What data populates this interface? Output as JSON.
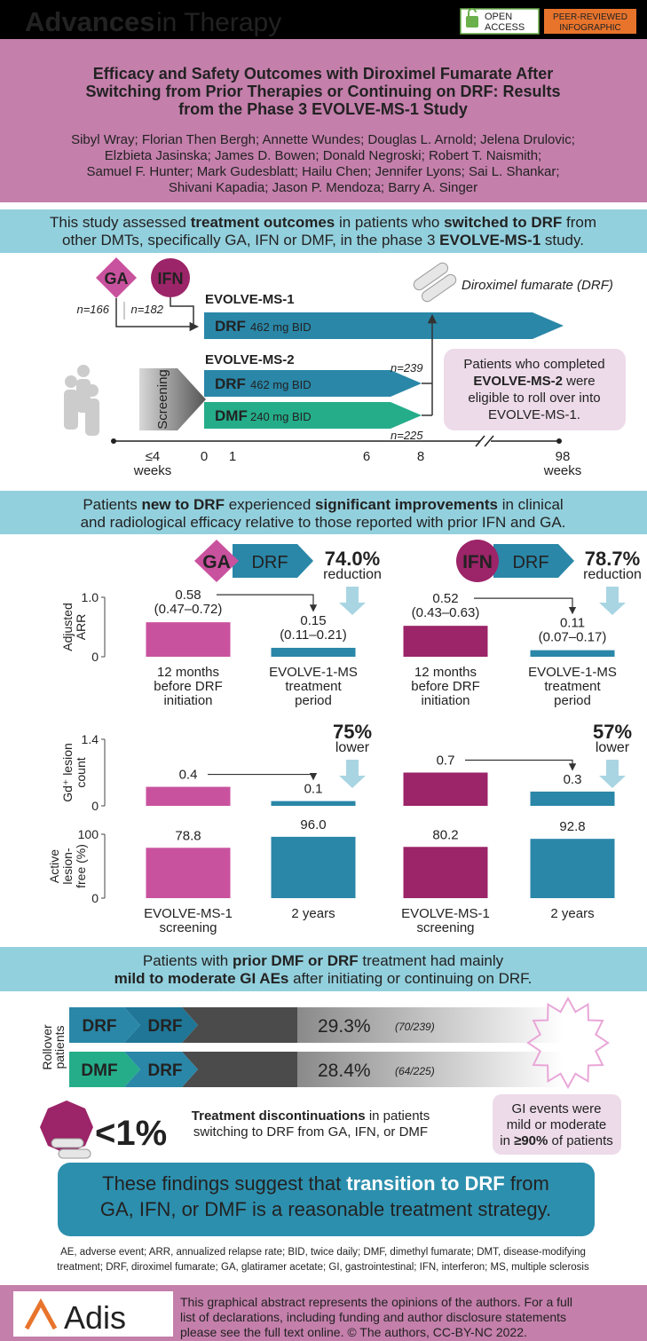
{
  "header": {
    "journal_bold": "Advances",
    "journal_light": "in Therapy",
    "open_access": [
      "OPEN",
      "ACCESS"
    ],
    "peer_reviewed": [
      "PEER-REVIEWED",
      "INFOGRAPHIC"
    ]
  },
  "title": [
    "Efficacy and Safety Outcomes with Diroximel Fumarate After",
    "Switching from Prior Therapies or Continuing on DRF: Results",
    "from the Phase 3 EVOLVE-MS-1 Study"
  ],
  "authors": [
    "Sibyl Wray; Florian Then Bergh; Annette Wundes; Douglas L. Arnold; Jelena Drulovic;",
    "Elzbieta Jasinska; James D. Bowen; Donald Negroski; Robert T. Naismith;",
    "Samuel F. Hunter; Mark Gudesblatt; Hailu Chen; Jennifer Lyons; Sai L. Shankar;",
    "Shivani Kapadia; Jason P. Mendoza; Barry A. Singer"
  ],
  "intro": [
    [
      "This study assessed ",
      {
        "b": "treatment outcomes"
      },
      " in patients who ",
      {
        "b": "switched to DRF"
      },
      " from"
    ],
    [
      "other DMTs, specifically GA, IFN or DMF, in the phase 3 ",
      {
        "b": "EVOLVE-MS-1"
      },
      " study."
    ]
  ],
  "design": {
    "arms": [
      {
        "label": "GA",
        "n": "n=166",
        "color": "#c9529e"
      },
      {
        "label": "IFN",
        "n": "n=182",
        "color": "#9c2468"
      }
    ],
    "drug": "Diroximel fumarate (DRF)",
    "study1": "EVOLVE-MS-1",
    "study1_arm": {
      "drug": "DRF",
      "dose": "462 mg BID",
      "color": "#2a87a8"
    },
    "study2": "EVOLVE-MS-2",
    "screening": "Screening",
    "study2_arms": [
      {
        "drug": "DRF",
        "dose": "462 mg BID",
        "n": "n=239",
        "color": "#2a87a8"
      },
      {
        "drug": "DMF",
        "dose": "240 mg BID",
        "n": "n=225",
        "color": "#25ad8a"
      }
    ],
    "rollover": [
      [
        "Patients who completed"
      ],
      [
        {
          "b": "EVOLVE-MS-2"
        },
        " were"
      ],
      [
        "eligible to roll over into"
      ],
      [
        "EVOLVE-MS-1."
      ]
    ],
    "timeline": [
      [
        "≤4",
        "weeks"
      ],
      [
        "0"
      ],
      [
        "1"
      ],
      [
        "6"
      ],
      [
        "8"
      ],
      [
        "98",
        "weeks"
      ]
    ]
  },
  "efficacy_intro": [
    [
      "Patients ",
      {
        "b": "new to DRF"
      },
      " experienced ",
      {
        "b": "significant improvements"
      },
      " in clinical"
    ],
    [
      "and radiological efficacy relative to those reported with prior IFN and GA."
    ]
  ],
  "efficacy": {
    "switches": [
      {
        "from": "GA",
        "to": "DRF",
        "from_color": "#c9529e",
        "to_color": "#2a87a8"
      },
      {
        "from": "IFN",
        "to": "DRF",
        "from_color": "#9c2468",
        "to_color": "#2a87a8"
      }
    ],
    "charts": [
      {
        "type": "bar",
        "y_label": [
          "Adjusted",
          "ARR"
        ],
        "ylim": [
          0,
          1
        ],
        "yticks": [
          0,
          {
            "value": 1,
            "label": "1.0"
          }
        ],
        "categories": [
          [
            "12 months",
            "before DRF",
            "initiation"
          ],
          [
            "EVOLVE-1-MS",
            "treatment",
            "period"
          ],
          [
            "12 months",
            "before DRF",
            "initiation"
          ],
          [
            "EVOLVE-1-MS",
            "treatment",
            "period"
          ]
        ],
        "values": [
          0.58,
          0.15,
          0.52,
          0.11
        ],
        "intervals": [
          "(0.47–0.72)",
          "(0.11–0.21)",
          "(0.43–0.63)",
          "(0.07–0.17)"
        ],
        "colors": [
          "#c9529e",
          "#2a87a8",
          "#9c2468",
          "#2a87a8"
        ],
        "changes": [
          {
            "value": "74.0%",
            "label": "reduction"
          },
          {
            "value": "78.7%",
            "label": "reduction"
          }
        ]
      },
      {
        "type": "bar",
        "y_label": [
          "Gd⁺ lesion",
          "count"
        ],
        "ylim": [
          0,
          1.4
        ],
        "yticks": [
          0,
          1.4
        ],
        "values": [
          0.4,
          0.1,
          0.7,
          0.3
        ],
        "colors": [
          "#c9529e",
          "#2a87a8",
          "#9c2468",
          "#2a87a8"
        ],
        "changes": [
          {
            "value": "75%",
            "label": "lower"
          },
          {
            "value": "57%",
            "label": "lower"
          }
        ]
      },
      {
        "type": "bar",
        "y_label": [
          "Active",
          "lesion-",
          "free (%)"
        ],
        "ylim": [
          0,
          100
        ],
        "yticks": [
          0,
          100
        ],
        "categories": [
          [
            "EVOLVE-MS-1",
            "screening"
          ],
          [
            "2 years"
          ],
          [
            "EVOLVE-MS-1",
            "screening"
          ],
          [
            "2 years"
          ]
        ],
        "values": [
          78.8,
          96,
          80.2,
          92.8
        ],
        "value_labels": [
          "78.8",
          "96.0",
          "80.2",
          "92.8"
        ],
        "colors": [
          "#c9529e",
          "#2a87a8",
          "#9c2468",
          "#2a87a8"
        ]
      }
    ]
  },
  "safety_intro": [
    [
      "Patients with ",
      {
        "b": "prior DMF or DRF"
      },
      " treatment had mainly"
    ],
    [
      {
        "b": "mild to moderate GI AEs"
      },
      " after initiating or continuing on DRF."
    ]
  ],
  "gi": {
    "y_label": [
      "Rollover",
      "patients"
    ],
    "rows": [
      {
        "from": "DRF",
        "to": "DRF",
        "rate": "29.3%",
        "count": "(70/239)",
        "from_color": "#2a87a8",
        "to_color": "#1f7696"
      },
      {
        "from": "DMF",
        "to": "DRF",
        "rate": "28.4%",
        "count": "(64/225)",
        "from_color": "#25ad8a",
        "to_color": "#2a87a8"
      }
    ],
    "discontinuation": {
      "rate": "<1%",
      "text": [
        [
          {
            "b": "Treatment discontinuations"
          },
          " in patients"
        ],
        [
          "switching to DRF from GA, IFN, or DMF"
        ]
      ]
    },
    "severity": [
      [
        "GI events were"
      ],
      [
        "mild or moderate"
      ],
      [
        "in ",
        {
          "b": "≥90%"
        },
        " of patients"
      ]
    ]
  },
  "conclusion": [
    [
      "These findings suggest that ",
      {
        "b": "transition to DRF"
      },
      " from"
    ],
    [
      "GA, IFN, or DMF is a reasonable treatment strategy."
    ]
  ],
  "abbreviations": [
    "AE, adverse event; ARR, annualized relapse rate; BID, twice daily; DMF, dimethyl fumarate; DMT, disease-modifying",
    "treatment; DRF, diroximel fumarate; GA, glatiramer acetate; GI, gastrointestinal; IFN, interferon; MS, multiple sclerosis"
  ],
  "footer": {
    "publisher": "Adis",
    "text": [
      "This graphical abstract represents the opinions of the authors. For a full",
      "list of declarations, including funding and author disclosure statements",
      "please see the full text online. © The authors, CC-BY-NC 2022."
    ]
  }
}
